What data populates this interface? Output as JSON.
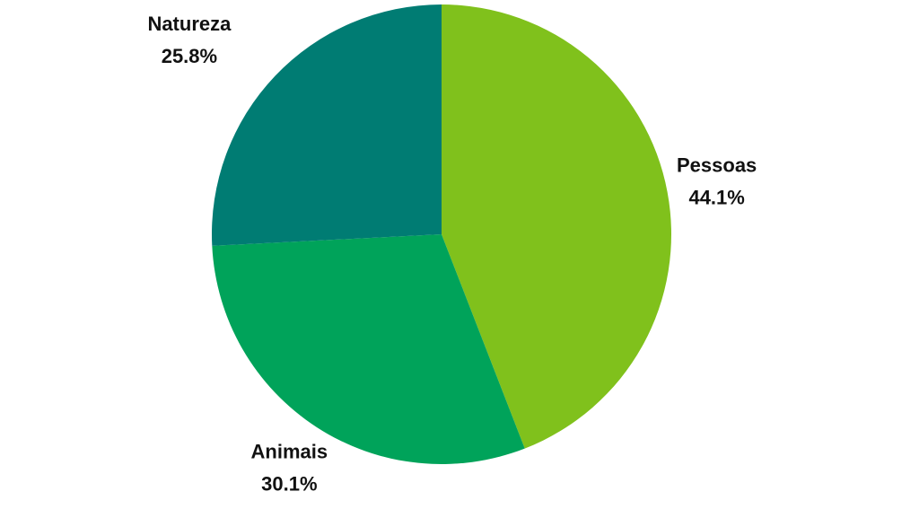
{
  "chart_data": {
    "type": "pie",
    "categories": [
      "Pessoas",
      "Animais",
      "Natureza"
    ],
    "values": [
      44.1,
      30.1,
      25.8
    ],
    "value_labels": [
      "44.1%",
      "30.1%",
      "25.8%"
    ],
    "colors": [
      "#80c11c",
      "#00a35a",
      "#007c73"
    ]
  }
}
